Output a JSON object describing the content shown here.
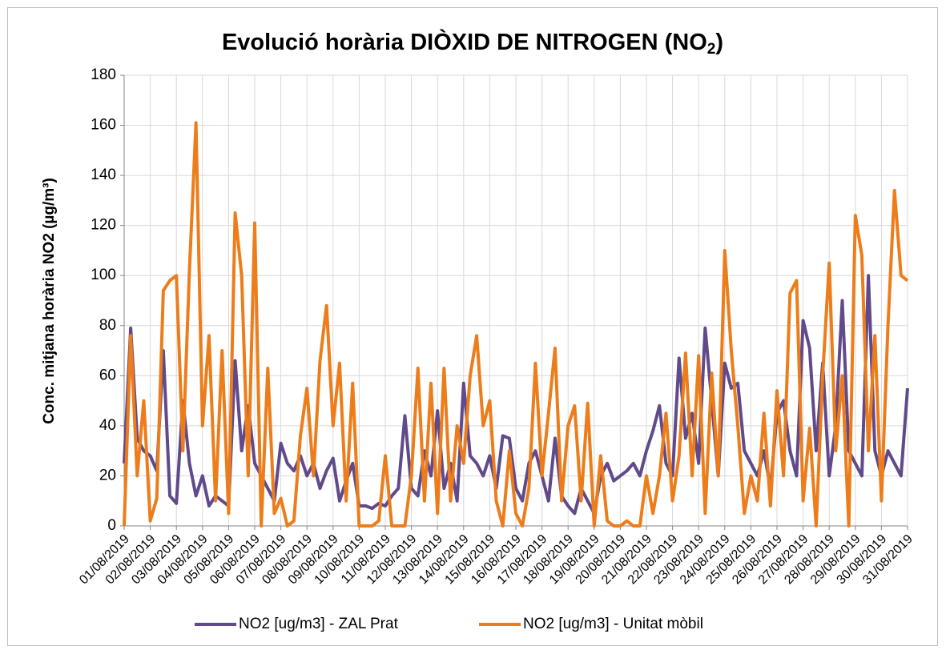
{
  "chart_data": {
    "type": "line",
    "title": "Evolució horària DIÒXID DE NITROGEN (NO",
    "title_subscript": "2",
    "title_end": ")",
    "y_label": "Conc. mitjana horària NO2 (µg/m³)",
    "xlim": [
      0,
      30
    ],
    "xticks": [
      {
        "value": 0,
        "label": "01/08/2019"
      },
      {
        "value": 1,
        "label": "02/08/2019"
      },
      {
        "value": 2,
        "label": "03/08/2019"
      },
      {
        "value": 3,
        "label": "04/08/2019"
      },
      {
        "value": 4,
        "label": "05/08/2019"
      },
      {
        "value": 5,
        "label": "06/08/2019"
      },
      {
        "value": 6,
        "label": "07/08/2019"
      },
      {
        "value": 7,
        "label": "08/08/2019"
      },
      {
        "value": 8,
        "label": "09/08/2019"
      },
      {
        "value": 9,
        "label": "10/08/2019"
      },
      {
        "value": 10,
        "label": "11/08/2019"
      },
      {
        "value": 11,
        "label": "12/08/2019"
      },
      {
        "value": 12,
        "label": "13/08/2019"
      },
      {
        "value": 13,
        "label": "14/08/2019"
      },
      {
        "value": 14,
        "label": "15/08/2019"
      },
      {
        "value": 15,
        "label": "16/08/2019"
      },
      {
        "value": 16,
        "label": "17/08/2019"
      },
      {
        "value": 17,
        "label": "18/08/2019"
      },
      {
        "value": 18,
        "label": "19/08/2019"
      },
      {
        "value": 19,
        "label": "20/08/2019"
      },
      {
        "value": 20,
        "label": "21/08/2019"
      },
      {
        "value": 21,
        "label": "22/08/2019"
      },
      {
        "value": 22,
        "label": "23/08/2019"
      },
      {
        "value": 23,
        "label": "24/08/2019"
      },
      {
        "value": 24,
        "label": "25/08/2019"
      },
      {
        "value": 25,
        "label": "26/08/2019"
      },
      {
        "value": 26,
        "label": "27/08/2019"
      },
      {
        "value": 27,
        "label": "28/08/2019"
      },
      {
        "value": 28,
        "label": "29/08/2019"
      },
      {
        "value": 29,
        "label": "30/08/2019"
      },
      {
        "value": 30,
        "label": "31/08/2019"
      }
    ],
    "ylim": [
      0,
      180
    ],
    "yticks": [
      0,
      20,
      40,
      60,
      80,
      100,
      120,
      140,
      160,
      180
    ],
    "grid": true,
    "legend": "bottom",
    "x": [
      0,
      0.25,
      0.5,
      0.75,
      1,
      1.25,
      1.5,
      1.75,
      2,
      2.25,
      2.5,
      2.75,
      3,
      3.25,
      3.5,
      3.75,
      4,
      4.25,
      4.5,
      4.75,
      5,
      5.25,
      5.5,
      5.75,
      6,
      6.25,
      6.5,
      6.75,
      7,
      7.25,
      7.5,
      7.75,
      8,
      8.25,
      8.5,
      8.75,
      9,
      9.25,
      9.5,
      9.75,
      10,
      10.25,
      10.5,
      10.75,
      11,
      11.25,
      11.5,
      11.75,
      12,
      12.25,
      12.5,
      12.75,
      13,
      13.25,
      13.5,
      13.75,
      14,
      14.25,
      14.5,
      14.75,
      15,
      15.25,
      15.5,
      15.75,
      16,
      16.25,
      16.5,
      16.75,
      17,
      17.25,
      17.5,
      17.75,
      18,
      18.25,
      18.5,
      18.75,
      19,
      19.25,
      19.5,
      19.75,
      20,
      20.25,
      20.5,
      20.75,
      21,
      21.25,
      21.5,
      21.75,
      22,
      22.25,
      22.5,
      22.75,
      23,
      23.25,
      23.5,
      23.75,
      24,
      24.25,
      24.5,
      24.75,
      25,
      25.25,
      25.5,
      25.75,
      26,
      26.25,
      26.5,
      26.75,
      27,
      27.25,
      27.5,
      27.75,
      28,
      28.25,
      28.5,
      28.75,
      29,
      29.25,
      29.5,
      29.75,
      30
    ],
    "series": [
      {
        "name": "NO2 [ug/m3] - ZAL Prat",
        "color": "#604a8b",
        "values": [
          25,
          79,
          35,
          30,
          28,
          22,
          70,
          12,
          9,
          50,
          25,
          12,
          20,
          8,
          12,
          10,
          8,
          66,
          30,
          48,
          25,
          20,
          15,
          10,
          33,
          25,
          22,
          28,
          20,
          25,
          15,
          22,
          27,
          10,
          18,
          25,
          8,
          8,
          7,
          9,
          8,
          12,
          15,
          44,
          15,
          12,
          30,
          20,
          46,
          15,
          25,
          10,
          57,
          28,
          25,
          20,
          28,
          15,
          36,
          35,
          15,
          10,
          25,
          30,
          20,
          10,
          35,
          12,
          8,
          5,
          15,
          10,
          5,
          20,
          25,
          18,
          20,
          22,
          25,
          20,
          30,
          38,
          48,
          25,
          20,
          67,
          35,
          45,
          25,
          79,
          50,
          20,
          65,
          55,
          57,
          30,
          25,
          20,
          30,
          15,
          45,
          50,
          30,
          20,
          82,
          71,
          30,
          65,
          20,
          40,
          90,
          30,
          25,
          20,
          100,
          30,
          20,
          30,
          25,
          20,
          55
        ]
      },
      {
        "name": "NO2 [ug/m3] - Unitat mòbil",
        "color": "#ed7d1a",
        "values": [
          0,
          76,
          20,
          50,
          2,
          11,
          94,
          98,
          100,
          30,
          102,
          161,
          40,
          76,
          10,
          70,
          5,
          125,
          100,
          20,
          121,
          0,
          63,
          5,
          11,
          0,
          2,
          36,
          55,
          20,
          66,
          88,
          40,
          65,
          10,
          57,
          0,
          0,
          0,
          2,
          28,
          0,
          0,
          0,
          20,
          63,
          10,
          57,
          5,
          63,
          10,
          40,
          25,
          60,
          76,
          40,
          50,
          10,
          0,
          30,
          5,
          0,
          15,
          65,
          20,
          45,
          71,
          10,
          40,
          48,
          10,
          49,
          0,
          28,
          2,
          0,
          0,
          2,
          0,
          0,
          20,
          5,
          20,
          45,
          10,
          28,
          69,
          20,
          68,
          5,
          61,
          20,
          110,
          70,
          40,
          5,
          20,
          10,
          45,
          8,
          54,
          20,
          93,
          98,
          10,
          39,
          0,
          60,
          105,
          30,
          60,
          0,
          124,
          108,
          30,
          76,
          10,
          80,
          134,
          100,
          98
        ]
      }
    ]
  }
}
